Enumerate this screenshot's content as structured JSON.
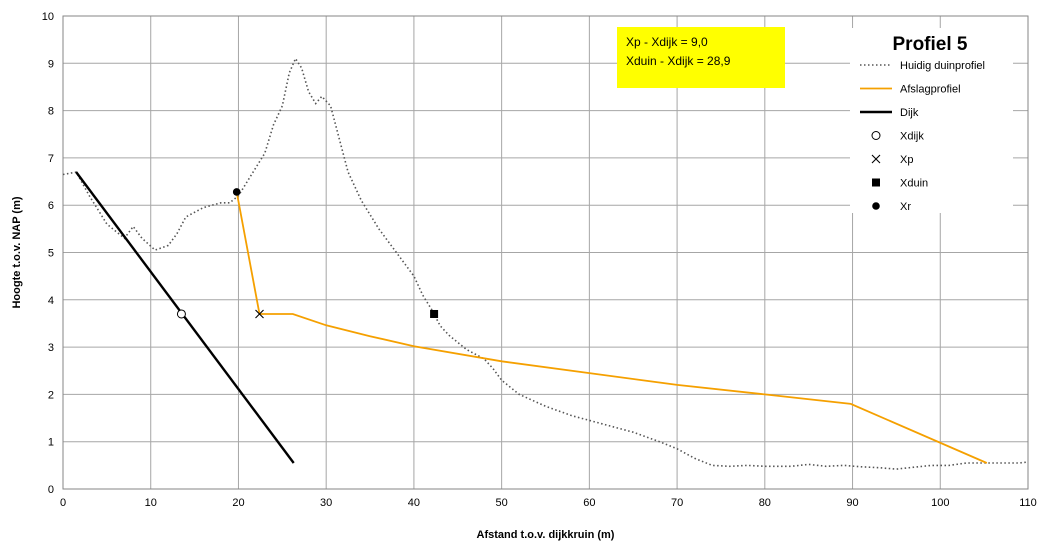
{
  "chart_data": {
    "type": "line",
    "title": "Profiel 5",
    "xlabel": "Afstand t.o.v. dijkkruin (m)",
    "ylabel": "Hoogte t.o.v. NAP (m)",
    "xlim": [
      0,
      110
    ],
    "ylim": [
      0,
      10
    ],
    "x_ticks": [
      0,
      10,
      20,
      30,
      40,
      50,
      60,
      70,
      80,
      90,
      100,
      110
    ],
    "y_ticks": [
      0,
      1,
      2,
      3,
      4,
      5,
      6,
      7,
      8,
      9,
      10
    ],
    "grid": true,
    "legend_position": "top-right",
    "annotation_lines": [
      "Xp - Xdijk = 9,0",
      "Xduin - Xdijk = 28,9"
    ],
    "colors": {
      "duinprofiel": "#555555",
      "afslagprofiel": "#f5a000",
      "dijk": "#000000",
      "annotation_bg": "#ffff00",
      "grid": "#a6a6a6"
    },
    "series": [
      {
        "name": "Huidig duinprofiel",
        "style": "dotted",
        "x": [
          0,
          1.5,
          3,
          5,
          7,
          8,
          9,
          10.5,
          12,
          13,
          14,
          15,
          16,
          17,
          18,
          19,
          20,
          21,
          22,
          23,
          24,
          25,
          25.8,
          26.5,
          27.2,
          28,
          28.8,
          29.5,
          30.5,
          31.5,
          32.5,
          34,
          36,
          38,
          40,
          41,
          42,
          43,
          44,
          46,
          48,
          49,
          50,
          52,
          55,
          58,
          60,
          63,
          65,
          68,
          70,
          72,
          74,
          76,
          78,
          80,
          83,
          85,
          87,
          89,
          91,
          93,
          95,
          97,
          99,
          101,
          103,
          105,
          107,
          109,
          110
        ],
        "y": [
          6.65,
          6.7,
          6.2,
          5.6,
          5.3,
          5.55,
          5.3,
          5.05,
          5.15,
          5.4,
          5.75,
          5.85,
          5.95,
          6.0,
          6.05,
          6.05,
          6.2,
          6.5,
          6.8,
          7.1,
          7.7,
          8.1,
          8.8,
          9.1,
          8.9,
          8.4,
          8.15,
          8.3,
          8.1,
          7.4,
          6.7,
          6.1,
          5.5,
          5.0,
          4.5,
          4.1,
          3.8,
          3.45,
          3.25,
          2.95,
          2.75,
          2.55,
          2.3,
          2.0,
          1.75,
          1.55,
          1.45,
          1.3,
          1.2,
          1.0,
          0.85,
          0.65,
          0.5,
          0.48,
          0.5,
          0.48,
          0.48,
          0.52,
          0.48,
          0.5,
          0.47,
          0.45,
          0.42,
          0.46,
          0.5,
          0.5,
          0.55,
          0.55,
          0.55,
          0.55,
          0.57
        ]
      },
      {
        "name": "Afslagprofiel",
        "style": "solid",
        "x": [
          19.8,
          22.4,
          26.2,
          30,
          35,
          40,
          50,
          60,
          70,
          80,
          89.8,
          105.3
        ],
        "y": [
          6.28,
          3.7,
          3.7,
          3.46,
          3.23,
          3.02,
          2.7,
          2.45,
          2.2,
          2.0,
          1.8,
          0.55
        ]
      },
      {
        "name": "Dijk",
        "style": "solid",
        "x": [
          1.5,
          26.3
        ],
        "y": [
          6.7,
          0.55
        ]
      }
    ],
    "points": [
      {
        "name": "Xdijk",
        "marker": "circle-open",
        "x": 13.5,
        "y": 3.7
      },
      {
        "name": "Xp",
        "marker": "cross",
        "x": 22.4,
        "y": 3.7
      },
      {
        "name": "Xduin",
        "marker": "square",
        "x": 42.3,
        "y": 3.7
      },
      {
        "name": "Xr",
        "marker": "circle-filled",
        "x": 19.8,
        "y": 6.28
      }
    ]
  }
}
